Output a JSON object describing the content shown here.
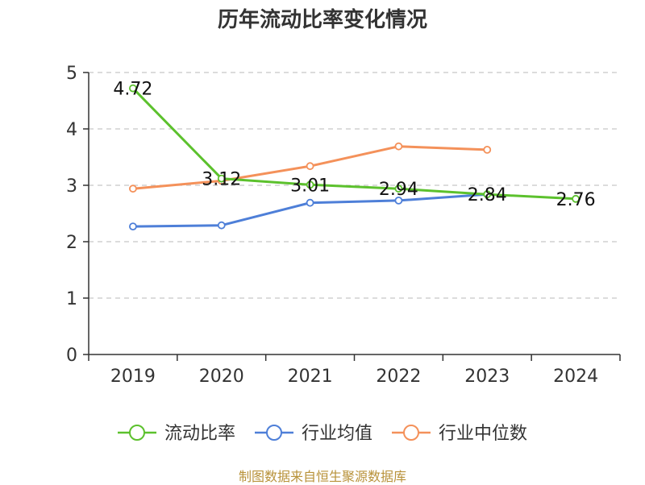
{
  "chart_data": {
    "type": "line",
    "title": "历年流动比率变化情况",
    "categories": [
      "2019",
      "2020",
      "2021",
      "2022",
      "2023",
      "2024"
    ],
    "ylim": [
      0,
      5
    ],
    "yticks": [
      0,
      1,
      2,
      3,
      4,
      5
    ],
    "grid": true,
    "legend_position": "bottom",
    "series": [
      {
        "name": "流动比率",
        "color": "#5cc12d",
        "values": [
          4.72,
          3.12,
          3.01,
          2.94,
          2.84,
          2.76
        ],
        "show_labels": true
      },
      {
        "name": "行业均值",
        "color": "#4e7fd8",
        "values": [
          2.27,
          2.29,
          2.69,
          2.73,
          2.84,
          null
        ],
        "show_labels": false
      },
      {
        "name": "行业中位数",
        "color": "#f4915a",
        "values": [
          2.94,
          3.08,
          3.34,
          3.69,
          3.63,
          null
        ],
        "show_labels": false
      }
    ]
  },
  "source": "制图数据来自恒生聚源数据库"
}
